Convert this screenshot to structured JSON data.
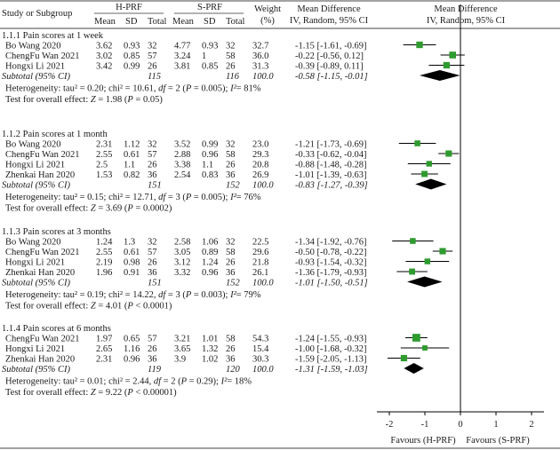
{
  "chart_data": {
    "type": "forest",
    "title": "Mean Difference, IV, Random, 95% CI",
    "headers": {
      "study": "Study or Subgroup",
      "group1": "H-PRF",
      "group2": "S-PRF",
      "mean": "Mean",
      "sd": "SD",
      "total": "Total",
      "weight": "Weight",
      "weight_unit": "(%)",
      "md": "Mean Difference",
      "md_method": "IV, Random, 95% CI",
      "plot_title": "Mean Difference",
      "plot_method": "IV, Random, 95% CI"
    },
    "axis": {
      "ticks": [
        -2,
        -1,
        0,
        1,
        2
      ],
      "tick_labels": [
        "-2",
        "-1",
        "0",
        "1",
        "2"
      ],
      "xlim": [
        -2.4,
        2.4
      ]
    },
    "footer": {
      "left": "Favours (H-PRF)",
      "right": "Favours (S-PRF)"
    },
    "subgroups": [
      {
        "title": "1.1.1 Pain scores at 1 week",
        "studies": [
          {
            "name": "Bo Wang 2020",
            "m1": "3.62",
            "sd1": "0.93",
            "n1": "32",
            "m2": "4.77",
            "sd2": "0.93",
            "n2": "32",
            "weight": "32.7",
            "ci": "-1.15 [-1.61, -0.69]",
            "md": -1.15,
            "lo": -1.61,
            "hi": -0.69,
            "w": 32.7
          },
          {
            "name": "ChengFu Wan 2021",
            "m1": "3.02",
            "sd1": "0.85",
            "n1": "57",
            "m2": "3.24",
            "sd2": "1",
            "n2": "58",
            "weight": "36.0",
            "ci": "-0.22 [-0.56, 0.12]",
            "md": -0.22,
            "lo": -0.56,
            "hi": 0.12,
            "w": 36.0
          },
          {
            "name": "Hongxi Li 2021",
            "m1": "3.42",
            "sd1": "0.99",
            "n1": "26",
            "m2": "3.81",
            "sd2": "0.85",
            "n2": "26",
            "weight": "31.3",
            "ci": "-0.39 [-0.89, 0.11]",
            "md": -0.39,
            "lo": -0.89,
            "hi": 0.11,
            "w": 31.3
          }
        ],
        "subtotal": {
          "label": "Subtotal (95% CI)",
          "n1": "115",
          "n2": "116",
          "weight": "100.0",
          "ci": "-0.58 [-1.15, -0.01]",
          "md": -0.58,
          "lo": -1.15,
          "hi": -0.01
        },
        "heterogeneity": {
          "prefix": "Heterogeneity: tau² = 0.20; chi² = 10.61, ",
          "df": "df",
          "df_val": " = 2 (",
          "p": "P",
          "p_val": " = 0.005); ",
          "i2": "I²",
          "i2_val": "= 81%"
        },
        "overall": {
          "prefix": "Test for overall effect: ",
          "z": "Z",
          "z_val": " = 1.98 (",
          "p": "P",
          "p_val": " = 0.05)"
        }
      },
      {
        "title": "1.1.2 Pain scores at 1 month",
        "studies": [
          {
            "name": "Bo Wang 2020",
            "m1": "2.31",
            "sd1": "1.12",
            "n1": "32",
            "m2": "3.52",
            "sd2": "0.99",
            "n2": "32",
            "weight": "23.0",
            "ci": "-1.21 [-1.73, -0.69]",
            "md": -1.21,
            "lo": -1.73,
            "hi": -0.69,
            "w": 23.0
          },
          {
            "name": "ChengFu Wan 2021",
            "m1": "2.55",
            "sd1": "0.61",
            "n1": "57",
            "m2": "2.88",
            "sd2": "0.96",
            "n2": "58",
            "weight": "29.3",
            "ci": "-0.33 [-0.62, -0.04]",
            "md": -0.33,
            "lo": -0.62,
            "hi": -0.04,
            "w": 29.3
          },
          {
            "name": "Hongxi Li 2021",
            "m1": "2.5",
            "sd1": "1.1",
            "n1": "26",
            "m2": "3.38",
            "sd2": "1.1",
            "n2": "26",
            "weight": "20.8",
            "ci": "-0.88 [-1.48, -0.28]",
            "md": -0.88,
            "lo": -1.48,
            "hi": -0.28,
            "w": 20.8
          },
          {
            "name": "Zhenkai Han 2020",
            "m1": "1.53",
            "sd1": "0.82",
            "n1": "36",
            "m2": "2.54",
            "sd2": "0.83",
            "n2": "36",
            "weight": "26.9",
            "ci": "-1.01 [-1.39, -0.63]",
            "md": -1.01,
            "lo": -1.39,
            "hi": -0.63,
            "w": 26.9
          }
        ],
        "subtotal": {
          "label": "Subtotal (95% CI)",
          "n1": "151",
          "n2": "152",
          "weight": "100.0",
          "ci": "-0.83 [-1.27, -0.39]",
          "md": -0.83,
          "lo": -1.27,
          "hi": -0.39
        },
        "heterogeneity": {
          "prefix": "Heterogeneity: tau² = 0.15; chi² = 12.71, ",
          "df": "df",
          "df_val": " = 3 (",
          "p": "P",
          "p_val": " = 0.005); ",
          "i2": "I²",
          "i2_val": "= 76%"
        },
        "overall": {
          "prefix": "Test for overall effect: ",
          "z": "Z",
          "z_val": " = 3.69 (",
          "p": "P",
          "p_val": " = 0.0002)"
        }
      },
      {
        "title": "1.1.3 Pain scores at 3 months",
        "studies": [
          {
            "name": "Bo Wang 2020",
            "m1": "1.24",
            "sd1": "1.3",
            "n1": "32",
            "m2": "2.58",
            "sd2": "1.06",
            "n2": "32",
            "weight": "22.5",
            "ci": "-1.34 [-1.92, -0.76]",
            "md": -1.34,
            "lo": -1.92,
            "hi": -0.76,
            "w": 22.5
          },
          {
            "name": "ChengFu Wan 2021",
            "m1": "2.55",
            "sd1": "0.61",
            "n1": "57",
            "m2": "3.05",
            "sd2": "0.89",
            "n2": "58",
            "weight": "29.6",
            "ci": "-0.50 [-0.78, -0.22]",
            "md": -0.5,
            "lo": -0.78,
            "hi": -0.22,
            "w": 29.6
          },
          {
            "name": "Hongxi Li 2021",
            "m1": "2.19",
            "sd1": "0.98",
            "n1": "26",
            "m2": "3.12",
            "sd2": "1.24",
            "n2": "26",
            "weight": "21.8",
            "ci": "-0.93 [-1.54, -0.32]",
            "md": -0.93,
            "lo": -1.54,
            "hi": -0.32,
            "w": 21.8
          },
          {
            "name": "Zhenkai Han 2020",
            "m1": "1.96",
            "sd1": "0.91",
            "n1": "36",
            "m2": "3.32",
            "sd2": "0.96",
            "n2": "36",
            "weight": "26.1",
            "ci": "-1.36 [-1.79, -0.93]",
            "md": -1.36,
            "lo": -1.79,
            "hi": -0.93,
            "w": 26.1
          }
        ],
        "subtotal": {
          "label": "Subtotal (95% CI)",
          "n1": "151",
          "n2": "152",
          "weight": "100.0",
          "ci": "-1.01 [-1.50, -0.51]",
          "md": -1.01,
          "lo": -1.5,
          "hi": -0.51
        },
        "heterogeneity": {
          "prefix": "Heterogeneity: tau² = 0.19; chi² = 14.22, ",
          "df": "df",
          "df_val": " = 3 (",
          "p": "P",
          "p_val": " = 0.003); ",
          "i2": "I²",
          "i2_val": "= 79%"
        },
        "overall": {
          "prefix": "Test for overall effect: ",
          "z": "Z",
          "z_val": " = 4.01 (",
          "p": "P",
          "p_val": " < 0.0001)"
        }
      },
      {
        "title": "1.1.4 Pain scores at 6 months",
        "studies": [
          {
            "name": "ChengFu Wan 2021",
            "m1": "1.97",
            "sd1": "0.65",
            "n1": "57",
            "m2": "3.21",
            "sd2": "1.01",
            "n2": "58",
            "weight": "54.3",
            "ci": "-1.24 [-1.55, -0.93]",
            "md": -1.24,
            "lo": -1.55,
            "hi": -0.93,
            "w": 54.3
          },
          {
            "name": "Hongxi Li 2021",
            "m1": "2.65",
            "sd1": "1.16",
            "n1": "26",
            "m2": "3.65",
            "sd2": "1.32",
            "n2": "26",
            "weight": "15.4",
            "ci": "-1.00 [-1.68, -0.32]",
            "md": -1.0,
            "lo": -1.68,
            "hi": -0.32,
            "w": 15.4
          },
          {
            "name": "Zhenkai Han 2020",
            "m1": "2.31",
            "sd1": "0.96",
            "n1": "36",
            "m2": "3.9",
            "sd2": "1.02",
            "n2": "36",
            "weight": "30.3",
            "ci": "-1.59 [-2.05, -1.13]",
            "md": -1.59,
            "lo": -2.05,
            "hi": -1.13,
            "w": 30.3
          }
        ],
        "subtotal": {
          "label": "Subtotal (95% CI)",
          "n1": "119",
          "n2": "120",
          "weight": "100.0",
          "ci": "-1.31 [-1.59, -1.03]",
          "md": -1.31,
          "lo": -1.59,
          "hi": -1.03
        },
        "heterogeneity": {
          "prefix": "Heterogeneity: tau² = 0.01; chi² = 2.44, ",
          "df": "df",
          "df_val": " = 2 (",
          "p": "P",
          "p_val": " = 0.29); ",
          "i2": "I²",
          "i2_val": "= 18%"
        },
        "overall": {
          "prefix": "Test for overall effect: ",
          "z": "Z",
          "z_val": " = 9.22 (",
          "p": "P",
          "p_val": " < 0.00001)"
        }
      }
    ]
  },
  "colors": {
    "marker": "#2e9b2e",
    "diamond": "#000000",
    "line": "#000000",
    "text": "#1a1a1a"
  }
}
